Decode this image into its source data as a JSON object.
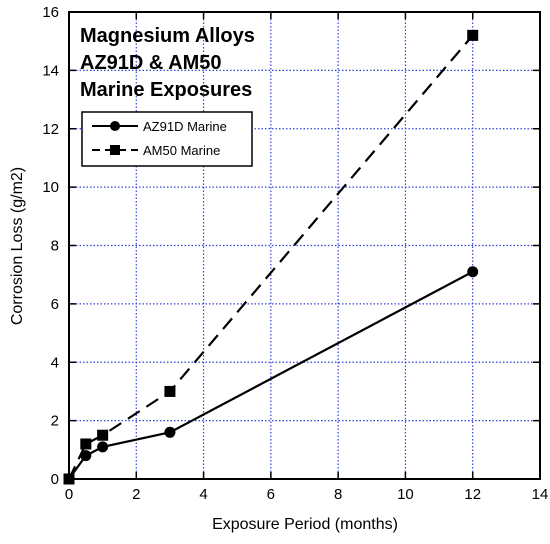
{
  "chart_data": {
    "type": "line",
    "title_lines": [
      "Magnesium Alloys",
      "AZ91D & AM50",
      "Marine Exposures"
    ],
    "xlabel": "Exposure Period (months)",
    "ylabel": "Corrosion Loss (g/m2)",
    "xlim": [
      0,
      14
    ],
    "ylim": [
      0,
      16
    ],
    "xticks": [
      "0",
      "2",
      "4",
      "6",
      "8",
      "10",
      "12",
      "14"
    ],
    "yticks": [
      "0",
      "2",
      "4",
      "6",
      "8",
      "10",
      "12",
      "14",
      "16"
    ],
    "grid": true,
    "grid_color": "#3344dd",
    "legend_position": "upper-left",
    "series": [
      {
        "name": "AZ91D Marine",
        "marker": "circle",
        "line_style": "solid",
        "color": "#000000",
        "x": [
          0,
          0.5,
          1,
          3,
          12
        ],
        "y": [
          0,
          0.8,
          1.1,
          1.6,
          7.1
        ]
      },
      {
        "name": "AM50 Marine",
        "marker": "square",
        "line_style": "dashed",
        "color": "#000000",
        "x": [
          0,
          0.5,
          1,
          3,
          12
        ],
        "y": [
          0,
          1.2,
          1.5,
          3.0,
          15.2
        ]
      }
    ]
  }
}
